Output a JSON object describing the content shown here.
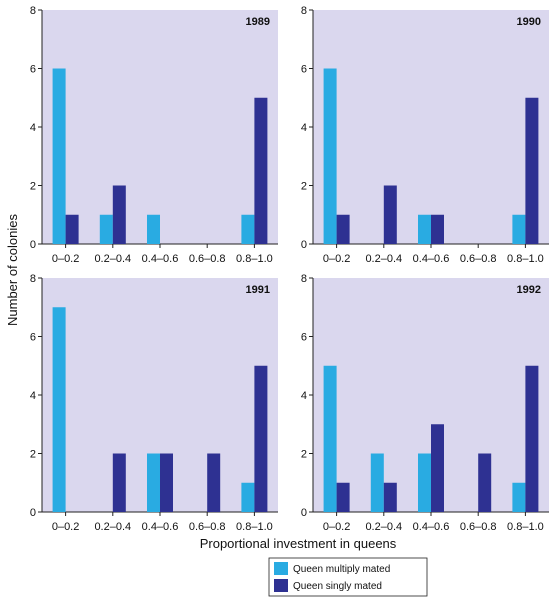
{
  "figure": {
    "ylabel": "Number of colonies",
    "xlabel": "Proportional investment in queens"
  },
  "legend": {
    "items": [
      {
        "label": "Queen multiply mated",
        "color": "#29abe2"
      },
      {
        "label": "Queen singly mated",
        "color": "#2e3192"
      }
    ]
  },
  "colors": {
    "panel_bg": "#dad7ee",
    "multiply": "#29abe2",
    "singly": "#2e3192"
  },
  "chart_data": [
    {
      "type": "bar",
      "title": "1989",
      "categories": [
        "0–0.2",
        "0.2–0.4",
        "0.4–0.6",
        "0.6–0.8",
        "0.8–1.0"
      ],
      "series": [
        {
          "name": "Queen multiply mated",
          "values": [
            6,
            1,
            1,
            0,
            1
          ]
        },
        {
          "name": "Queen singly mated",
          "values": [
            1,
            2,
            0,
            0,
            5
          ]
        }
      ],
      "ylim": [
        0,
        8
      ],
      "yticks": [
        0,
        2,
        4,
        6,
        8
      ],
      "grid": false
    },
    {
      "type": "bar",
      "title": "1990",
      "categories": [
        "0–0.2",
        "0.2–0.4",
        "0.4–0.6",
        "0.6–0.8",
        "0.8–1.0"
      ],
      "series": [
        {
          "name": "Queen multiply mated",
          "values": [
            6,
            0,
            1,
            0,
            1
          ]
        },
        {
          "name": "Queen singly mated",
          "values": [
            1,
            2,
            1,
            0,
            5
          ]
        }
      ],
      "ylim": [
        0,
        8
      ],
      "yticks": [
        0,
        2,
        4,
        6,
        8
      ],
      "grid": false
    },
    {
      "type": "bar",
      "title": "1991",
      "categories": [
        "0–0.2",
        "0.2–0.4",
        "0.4–0.6",
        "0.6–0.8",
        "0.8–1.0"
      ],
      "series": [
        {
          "name": "Queen multiply mated",
          "values": [
            7,
            0,
            2,
            0,
            1
          ]
        },
        {
          "name": "Queen singly mated",
          "values": [
            0,
            2,
            2,
            2,
            5
          ]
        }
      ],
      "ylim": [
        0,
        8
      ],
      "yticks": [
        0,
        2,
        4,
        6,
        8
      ],
      "grid": false
    },
    {
      "type": "bar",
      "title": "1992",
      "categories": [
        "0–0.2",
        "0.2–0.4",
        "0.4–0.6",
        "0.6–0.8",
        "0.8–1.0"
      ],
      "series": [
        {
          "name": "Queen multiply mated",
          "values": [
            5,
            2,
            2,
            0,
            1
          ]
        },
        {
          "name": "Queen singly mated",
          "values": [
            1,
            1,
            3,
            2,
            5
          ]
        }
      ],
      "ylim": [
        0,
        8
      ],
      "yticks": [
        0,
        2,
        4,
        6,
        8
      ],
      "grid": false
    }
  ]
}
